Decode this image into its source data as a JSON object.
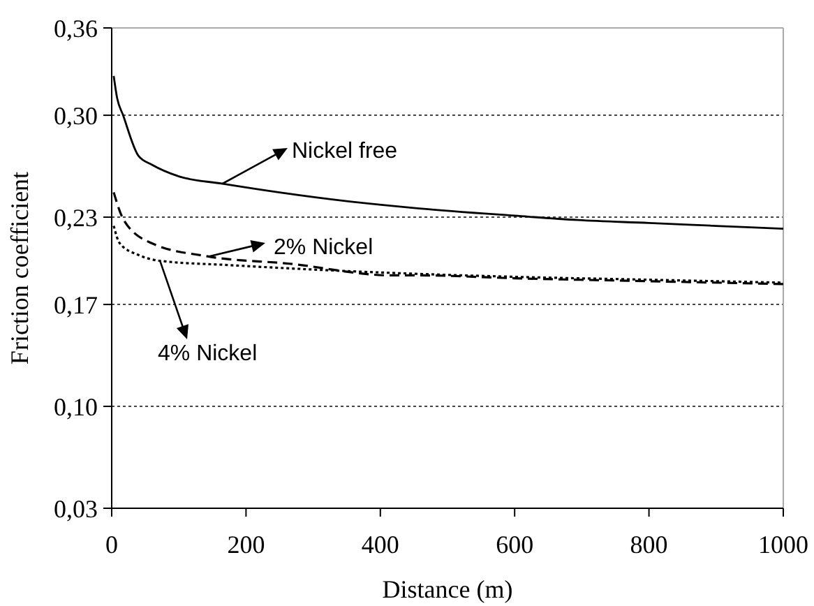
{
  "chart_data": {
    "type": "line",
    "xlabel": "Distance (m)",
    "ylabel": "Friction coefficient",
    "xlim": [
      0,
      1000
    ],
    "xticks": [
      0,
      200,
      400,
      600,
      800,
      1000
    ],
    "ylim": [
      0.03,
      0.36
    ],
    "yticks": [
      {
        "value": 0.03,
        "label": "0,03"
      },
      {
        "value": 0.1,
        "label": "0,10"
      },
      {
        "value": 0.17,
        "label": "0,17"
      },
      {
        "value": 0.23,
        "label": "0,23"
      },
      {
        "value": 0.3,
        "label": "0,30"
      },
      {
        "value": 0.36,
        "label": "0,36"
      }
    ],
    "grid": "y",
    "marker": "none",
    "annotations": [
      "Nickel free",
      "2% Nickel",
      "4% Nickel"
    ],
    "series": [
      {
        "color": "#000000",
        "line_style": "solid",
        "x": [
          3,
          8,
          17,
          40,
          60,
          100,
          165,
          250,
          350,
          458,
          600,
          694,
          800,
          900,
          1000
        ],
        "values": [
          0.327,
          0.312,
          0.3,
          0.272,
          0.266,
          0.258,
          0.253,
          0.247,
          0.241,
          0.236,
          0.231,
          0.228,
          0.226,
          0.224,
          0.222
        ]
      },
      {
        "color": "#000000",
        "line_style": "dashed",
        "x": [
          3,
          18,
          60,
          144,
          265,
          417,
          458,
          600,
          800,
          1000
        ],
        "values": [
          0.247,
          0.228,
          0.212,
          0.203,
          0.198,
          0.19,
          0.19,
          0.188,
          0.186,
          0.184
        ]
      },
      {
        "color": "#000000",
        "line_style": "dotted",
        "x": [
          3,
          12,
          40,
          72,
          177,
          300,
          458,
          600,
          800,
          1000
        ],
        "values": [
          0.224,
          0.212,
          0.204,
          0.2,
          0.197,
          0.194,
          0.191,
          0.189,
          0.187,
          0.185
        ]
      }
    ]
  }
}
